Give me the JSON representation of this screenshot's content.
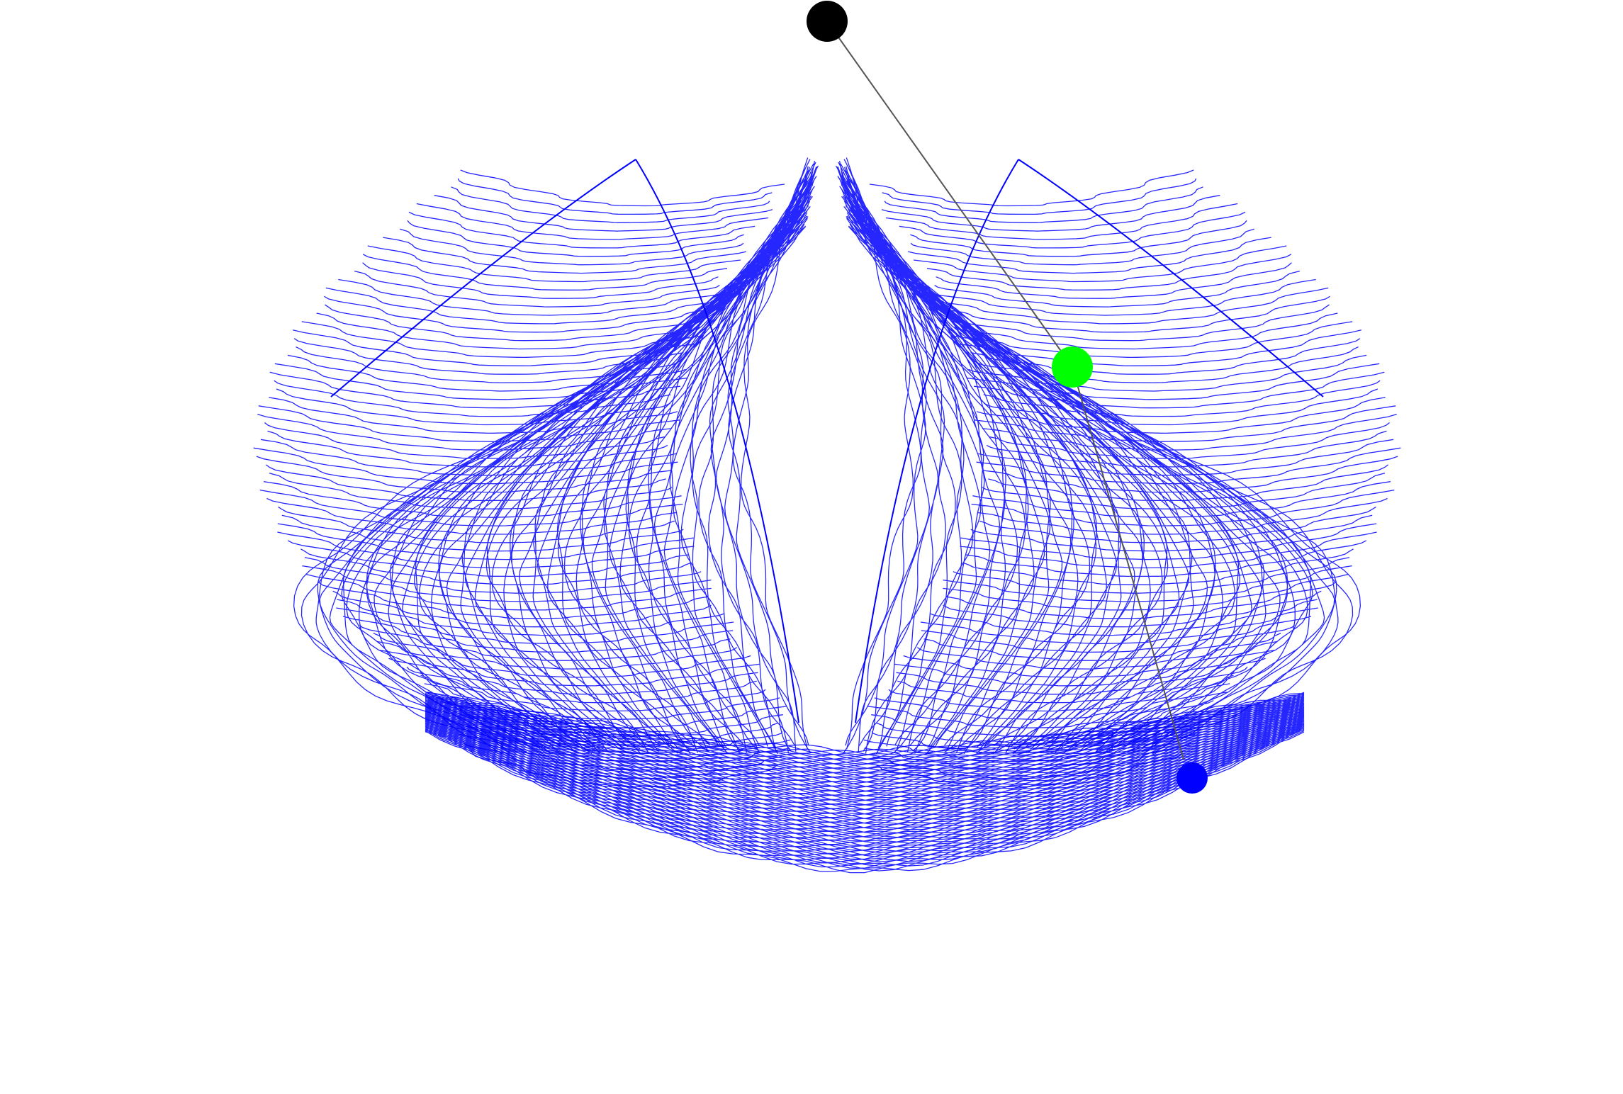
{
  "scene": {
    "background_color": "#ffffff",
    "trace_color": "#0000ff",
    "rod_color": "#555555",
    "pivot_color": "#000000",
    "middle_bob_color": "#00ff00",
    "end_bob_color": "#0000ff"
  }
}
